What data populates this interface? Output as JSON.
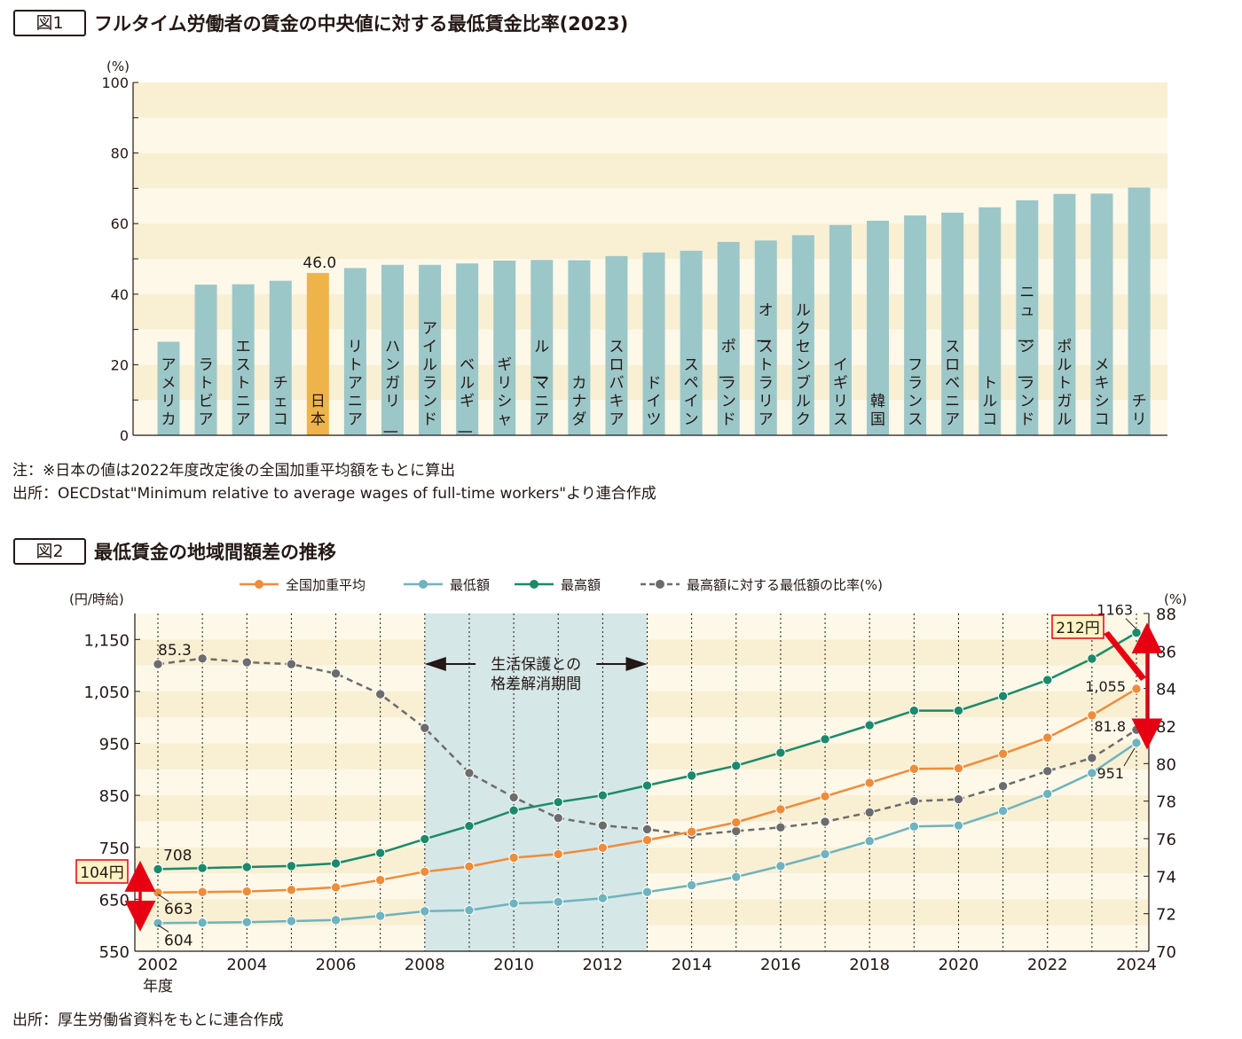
{
  "fig1": {
    "tag": "図1",
    "title": "フルタイム労働者の賃金の中央値に対する最低賃金比率(2023)",
    "chart_data": {
      "type": "bar",
      "yunit": "(%)",
      "ylim": [
        0,
        100
      ],
      "yticks": [
        0,
        20,
        40,
        60,
        80,
        100
      ],
      "categories": [
        "アメリカ",
        "ラトビア",
        "エストニア",
        "チェコ",
        "日本",
        "リトアニア",
        "ハンガリー",
        "アイルランド",
        "ベルギー",
        "ギリシャ",
        "ルーマニア",
        "カナダ",
        "スロバキア",
        "ドイツ",
        "スペイン",
        "ポーランド",
        "オーストラリア",
        "ルクセンブルク",
        "イギリス",
        "韓国",
        "フランス",
        "スロベニア",
        "トルコ",
        "ニュージーランド",
        "ポルトガル",
        "メキシコ",
        "チリ"
      ],
      "values": [
        26.5,
        42.7,
        42.8,
        43.8,
        46.0,
        47.4,
        48.3,
        48.3,
        48.7,
        49.5,
        49.7,
        49.6,
        50.8,
        51.8,
        52.3,
        54.8,
        55.2,
        56.7,
        59.6,
        60.8,
        62.3,
        63.1,
        64.6,
        66.6,
        68.4,
        68.5,
        70.2
      ],
      "highlight_index": 4,
      "highlight_label": "46.0",
      "colors": {
        "bar": "#9cc7c8",
        "highlight": "#eeb44a",
        "band_light": "#fdf8e8",
        "band_dark": "#f9efd3"
      }
    }
  },
  "fig1_notes": {
    "note": "注：※日本の値は2022年度改定後の全国加重平均額をもとに算出",
    "source": "出所：OECDstat\"Minimum relative to average wages of full-time workers\"より連合作成"
  },
  "fig2": {
    "tag": "図2",
    "title": "最低賃金の地域間額差の推移",
    "chart_data": {
      "type": "line",
      "x": [
        2002,
        2003,
        2004,
        2005,
        2006,
        2007,
        2008,
        2009,
        2010,
        2011,
        2012,
        2013,
        2014,
        2015,
        2016,
        2017,
        2018,
        2019,
        2020,
        2021,
        2022,
        2023,
        2024
      ],
      "xticks": [
        2002,
        2004,
        2006,
        2008,
        2010,
        2012,
        2014,
        2016,
        2018,
        2020,
        2022,
        2024
      ],
      "xlabel_sub": "年度",
      "y_left_unit": "(円/時給)",
      "y_left_ticks": [
        "550",
        "650",
        "750",
        "850",
        "950",
        "1,050",
        "1,150"
      ],
      "ylim_left": [
        550,
        1200
      ],
      "y_right_unit": "(%)",
      "y_right_ticks": [
        70,
        72,
        74,
        76,
        78,
        80,
        82,
        84,
        86,
        88
      ],
      "ylim_right": [
        70,
        88
      ],
      "series": [
        {
          "name": "全国加重平均",
          "axis": "left",
          "color": "#ef8c3a",
          "values": [
            663,
            664,
            665,
            668,
            673,
            687,
            703,
            713,
            730,
            737,
            749,
            764,
            780,
            798,
            823,
            848,
            874,
            901,
            902,
            930,
            961,
            1004,
            1055
          ]
        },
        {
          "name": "最低額",
          "axis": "left",
          "color": "#6eb3bd",
          "values": [
            604,
            605,
            606,
            608,
            610,
            618,
            627,
            629,
            642,
            645,
            652,
            664,
            677,
            693,
            714,
            737,
            762,
            790,
            792,
            820,
            853,
            893,
            951
          ]
        },
        {
          "name": "最高額",
          "axis": "left",
          "color": "#1b8a6b",
          "values": [
            708,
            710,
            712,
            714,
            719,
            739,
            766,
            791,
            821,
            837,
            850,
            869,
            888,
            907,
            932,
            958,
            985,
            1013,
            1013,
            1041,
            1072,
            1113,
            1163
          ]
        },
        {
          "name": "最高額に対する最低額の比率(%)",
          "axis": "right",
          "color": "#6d6c6c",
          "dashed": true,
          "values": [
            85.3,
            85.6,
            85.4,
            85.3,
            84.8,
            83.7,
            81.9,
            79.5,
            78.2,
            77.1,
            76.7,
            76.5,
            76.2,
            76.4,
            76.6,
            76.9,
            77.4,
            78.0,
            78.1,
            78.8,
            79.6,
            80.3,
            81.8
          ]
        }
      ],
      "shaded_period": {
        "from": 2008,
        "to": 2013,
        "label_line1": "生活保護との",
        "label_line2": "格差解消期間"
      },
      "annotations": {
        "start_max": "708",
        "start_avg": "663",
        "start_min": "604",
        "start_ratio": "85.3",
        "end_max": "1163",
        "end_avg": "1,055",
        "end_min": "951",
        "end_ratio": "81.8",
        "gap_2002": "104円",
        "gap_2024": "212円"
      },
      "colors": {
        "band_light": "#fdf8e8",
        "band_dark": "#f9efd3",
        "shade": "#d5e7e7",
        "arrow": "#e60012"
      }
    }
  },
  "fig2_notes": {
    "source": "出所：厚生労働省資料をもとに連合作成"
  }
}
